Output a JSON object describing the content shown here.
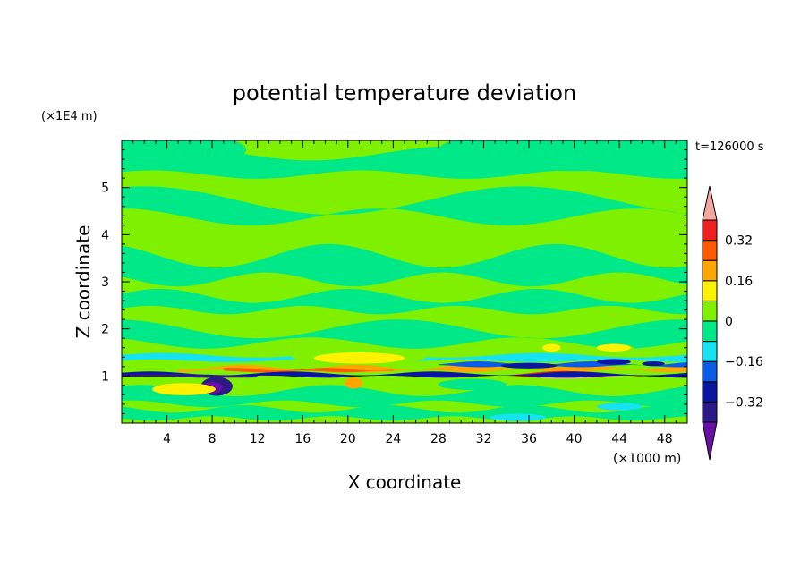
{
  "chart_data": {
    "type": "heatmap",
    "title": "potential temperature deviation",
    "time_label": "t=126000 s",
    "xlabel": "X coordinate",
    "ylabel": "Z coordinate",
    "x_units": "(×1000 m)",
    "y_units": "(×1E4 m)",
    "xlim": [
      0,
      50
    ],
    "ylim": [
      0,
      6
    ],
    "x_ticks": [
      4,
      8,
      12,
      16,
      20,
      24,
      28,
      32,
      36,
      40,
      44,
      48
    ],
    "x_tick_labels": [
      "4",
      "8",
      "12",
      "16",
      "20",
      "24",
      "28",
      "32",
      "36",
      "40",
      "44",
      "48"
    ],
    "y_ticks": [
      1,
      2,
      3,
      4,
      5
    ],
    "y_tick_labels": [
      "1",
      "2",
      "3",
      "4",
      "5"
    ],
    "colorbar": {
      "levels": [
        -0.4,
        -0.32,
        -0.24,
        -0.16,
        -0.08,
        0,
        0.08,
        0.16,
        0.24,
        0.32,
        0.4
      ],
      "labeled_values": [
        -0.32,
        -0.16,
        0,
        0.16,
        0.32
      ],
      "labels": [
        "−0.32",
        "−0.16",
        "0",
        "0.16",
        "0.32"
      ],
      "colors": [
        "#2e1a86",
        "#0a16a0",
        "#0a5ce8",
        "#17e3f0",
        "#00e887",
        "#7ef000",
        "#fff200",
        "#ffa500",
        "#ff5a00",
        "#ee1f1f"
      ],
      "under_color": "#6a0fa6",
      "over_color": "#f4a7a0"
    },
    "background_fill": "#7ef000",
    "regions": [
      {
        "kind": "band",
        "level": -0.04,
        "z": 5.5,
        "thick": 0.45,
        "amp": 0.15,
        "k": 2,
        "phase": 0.5
      },
      {
        "kind": "band",
        "level": -0.04,
        "z": 4.55,
        "thick": 0.35,
        "amp": 0.3,
        "k": 1.5,
        "phase": 1.2
      },
      {
        "kind": "band",
        "level": -0.04,
        "z": 3.3,
        "thick": 0.5,
        "amp": 0.25,
        "k": 2.5,
        "phase": 2.1
      },
      {
        "kind": "band",
        "level": -0.04,
        "z": 2.55,
        "thick": 0.3,
        "amp": 0.15,
        "k": 3,
        "phase": 0.3
      },
      {
        "kind": "band",
        "level": -0.04,
        "z": 1.85,
        "thick": 0.3,
        "amp": 0.2,
        "k": 2,
        "phase": 1.7
      },
      {
        "kind": "band",
        "level": -0.04,
        "z": 0.55,
        "thick": 0.28,
        "amp": 0.12,
        "k": 3,
        "phase": 0.9
      },
      {
        "kind": "band",
        "level": -0.04,
        "z": 0.2,
        "thick": 0.2,
        "amp": 0.08,
        "k": 4,
        "phase": 2.4
      },
      {
        "kind": "blob",
        "level": -0.04,
        "x": 40,
        "z": 5.8,
        "rx": 12,
        "rz": 0.45
      },
      {
        "kind": "blob",
        "level": -0.04,
        "x": 5,
        "z": 5.8,
        "rx": 6,
        "rz": 0.35
      },
      {
        "kind": "band",
        "level": -0.12,
        "x0": 0,
        "x1": 50,
        "z": 1.38,
        "thick": 0.12,
        "amp": 0.05,
        "k": 3,
        "phase": 0.2
      },
      {
        "kind": "blob",
        "level": 0.04,
        "x": 21,
        "z": 1.42,
        "rx": 6,
        "rz": 0.18
      },
      {
        "kind": "blob",
        "level": 0.12,
        "x": 21,
        "z": 1.38,
        "rx": 4,
        "rz": 0.12
      },
      {
        "kind": "blob",
        "level": 0.04,
        "x": 44,
        "z": 1.55,
        "rx": 1.4,
        "rz": 0.12
      },
      {
        "kind": "blob",
        "level": 0.12,
        "x": 38,
        "z": 1.6,
        "rx": 0.8,
        "rz": 0.08
      },
      {
        "kind": "band",
        "level": 0.2,
        "x0": 5,
        "x1": 50,
        "z": 1.15,
        "thick": 0.08,
        "amp": 0.05,
        "k": 5,
        "phase": 1.1
      },
      {
        "kind": "band",
        "level": 0.28,
        "x0": 9,
        "x1": 24,
        "z": 1.12,
        "thick": 0.05,
        "amp": 0.03,
        "k": 6,
        "phase": 0.5
      },
      {
        "kind": "band",
        "level": 0.36,
        "x0": 34,
        "x1": 46,
        "z": 1.02,
        "thick": 0.07,
        "amp": 0.05,
        "k": 4,
        "phase": 0.8
      },
      {
        "kind": "band",
        "level": 0.44,
        "x0": 37,
        "x1": 44,
        "z": 0.98,
        "thick": 0.05,
        "amp": 0.03,
        "k": 5,
        "phase": 1.4
      },
      {
        "kind": "band",
        "level": -0.28,
        "x0": 0,
        "x1": 50,
        "z": 1.02,
        "thick": 0.07,
        "amp": 0.04,
        "k": 4,
        "phase": 0.3
      },
      {
        "kind": "band",
        "level": -0.36,
        "x0": 0,
        "x1": 12,
        "z": 1.0,
        "thick": 0.05,
        "amp": 0.02,
        "k": 3,
        "phase": 0.1
      },
      {
        "kind": "band",
        "level": -0.2,
        "x0": 28,
        "x1": 50,
        "z": 1.24,
        "thick": 0.06,
        "amp": 0.04,
        "k": 5,
        "phase": 0.6
      },
      {
        "kind": "blob",
        "level": -0.28,
        "x": 36,
        "z": 1.22,
        "rx": 2.5,
        "rz": 0.06
      },
      {
        "kind": "blob",
        "level": -0.28,
        "x": 43.5,
        "z": 1.3,
        "rx": 1.5,
        "rz": 0.06
      },
      {
        "kind": "blob",
        "level": -0.28,
        "x": 47,
        "z": 1.26,
        "rx": 1.0,
        "rz": 0.05
      },
      {
        "kind": "blob",
        "level": -0.36,
        "x": 8.4,
        "z": 0.78,
        "rx": 1.4,
        "rz": 0.2
      },
      {
        "kind": "blob",
        "level": -0.44,
        "x": 8.0,
        "z": 0.75,
        "rx": 0.9,
        "rz": 0.12
      },
      {
        "kind": "blob",
        "level": 0.12,
        "x": 5.5,
        "z": 0.72,
        "rx": 2.8,
        "rz": 0.13
      },
      {
        "kind": "blob",
        "level": 0.2,
        "x": 20.5,
        "z": 0.85,
        "rx": 0.8,
        "rz": 0.12
      },
      {
        "kind": "blob",
        "level": -0.04,
        "x": 31,
        "z": 0.82,
        "rx": 3,
        "rz": 0.12
      },
      {
        "kind": "blob",
        "level": -0.12,
        "x": 35,
        "z": 0.12,
        "rx": 2.5,
        "rz": 0.08
      },
      {
        "kind": "blob",
        "level": -0.12,
        "x": 44,
        "z": 0.35,
        "rx": 2,
        "rz": 0.08
      },
      {
        "kind": "blob",
        "level": 0.12,
        "x": 43.5,
        "z": 1.6,
        "rx": 1.5,
        "rz": 0.08
      }
    ]
  }
}
